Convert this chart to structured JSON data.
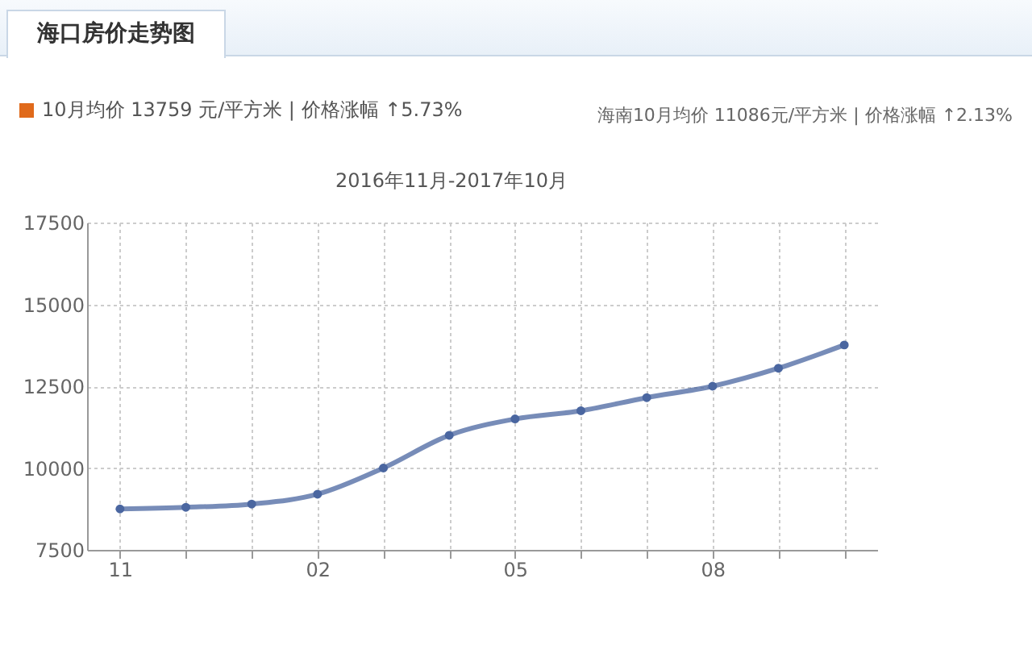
{
  "chart_data": {
    "type": "line",
    "title": "海口房价走势图",
    "subtitle": "2016年11月-2017年10月",
    "annotations": [
      "10月均价 13759 元/平方米 | 价格涨幅 ↑5.73%",
      "海南10月均价 11086元/平方米 | 价格涨幅 ↑2.13%"
    ],
    "categories": [
      "11",
      null,
      null,
      "02",
      null,
      null,
      "05",
      null,
      null,
      "08",
      null,
      null
    ],
    "series": [
      {
        "color": "#4a66a0",
        "values": [
          8750,
          8800,
          8900,
          9200,
          10000,
          11000,
          11500,
          11750,
          12150,
          12500,
          13050,
          13759
        ]
      }
    ],
    "ylim": [
      7500,
      17500
    ],
    "yticks": [
      7500,
      10000,
      12500,
      15000,
      17500
    ],
    "grid": true,
    "marker": "circle",
    "line_style": "solid",
    "legend": false
  }
}
